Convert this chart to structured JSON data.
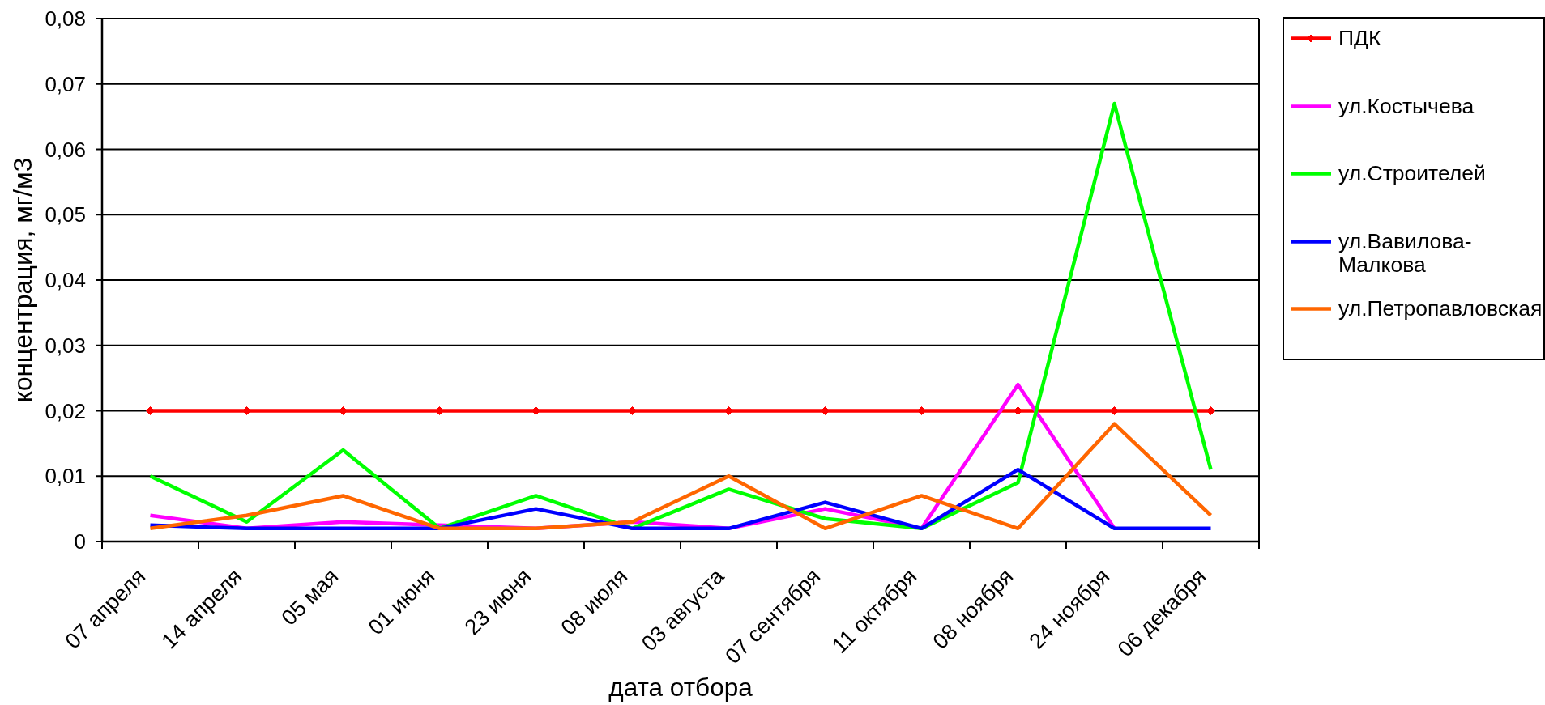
{
  "chart_data": {
    "type": "line",
    "xlabel": "дата отбора",
    "ylabel": "концентрация, мг/м3",
    "categories": [
      "07 апреля",
      "14 апреля",
      "05 мая",
      "01 июня",
      "23 июня",
      "08 июля",
      "03 августа",
      "07 сентября",
      "11 октября",
      "08 ноября",
      "24 ноября",
      "06 декабря"
    ],
    "series": [
      {
        "name": "ПДК",
        "color": "#ff0000",
        "marker": "diamond",
        "values": [
          0.02,
          0.02,
          0.02,
          0.02,
          0.02,
          0.02,
          0.02,
          0.02,
          0.02,
          0.02,
          0.02,
          0.02
        ]
      },
      {
        "name": "ул.Костычева",
        "color": "#ff00ff",
        "values": [
          0.004,
          0.002,
          0.003,
          0.0025,
          0.002,
          0.003,
          0.002,
          0.005,
          0.002,
          0.024,
          0.002,
          null
        ]
      },
      {
        "name": "ул.Строителей",
        "color": "#00ff00",
        "values": [
          0.01,
          0.003,
          0.014,
          0.002,
          0.007,
          0.002,
          0.008,
          0.0035,
          0.002,
          0.009,
          0.067,
          0.011
        ]
      },
      {
        "name": "ул.Вавилова-Малкова",
        "color": "#0000ff",
        "values": [
          0.0025,
          0.002,
          0.002,
          0.002,
          0.005,
          0.002,
          0.002,
          0.006,
          0.002,
          0.011,
          0.002,
          0.002
        ]
      },
      {
        "name": "ул.Петропавловская",
        "color": "#ff6600",
        "values": [
          0.002,
          0.004,
          0.007,
          0.002,
          0.002,
          0.003,
          0.01,
          0.002,
          0.007,
          0.002,
          0.018,
          0.004
        ]
      }
    ],
    "ylim": [
      0,
      0.08
    ],
    "yticks": [
      0,
      {
        "value": 0.01,
        "label": "0,01"
      },
      {
        "value": 0.02,
        "label": "0,02"
      },
      {
        "value": 0.03,
        "label": "0,03"
      },
      {
        "value": 0.04,
        "label": "0,04"
      },
      {
        "value": 0.05,
        "label": "0,05"
      },
      {
        "value": 0.06,
        "label": "0,06"
      },
      {
        "value": 0.07,
        "label": "0,07"
      },
      {
        "value": 0.08,
        "label": "0,08"
      }
    ],
    "grid": "y",
    "legend": "right",
    "line_style": "solid"
  }
}
